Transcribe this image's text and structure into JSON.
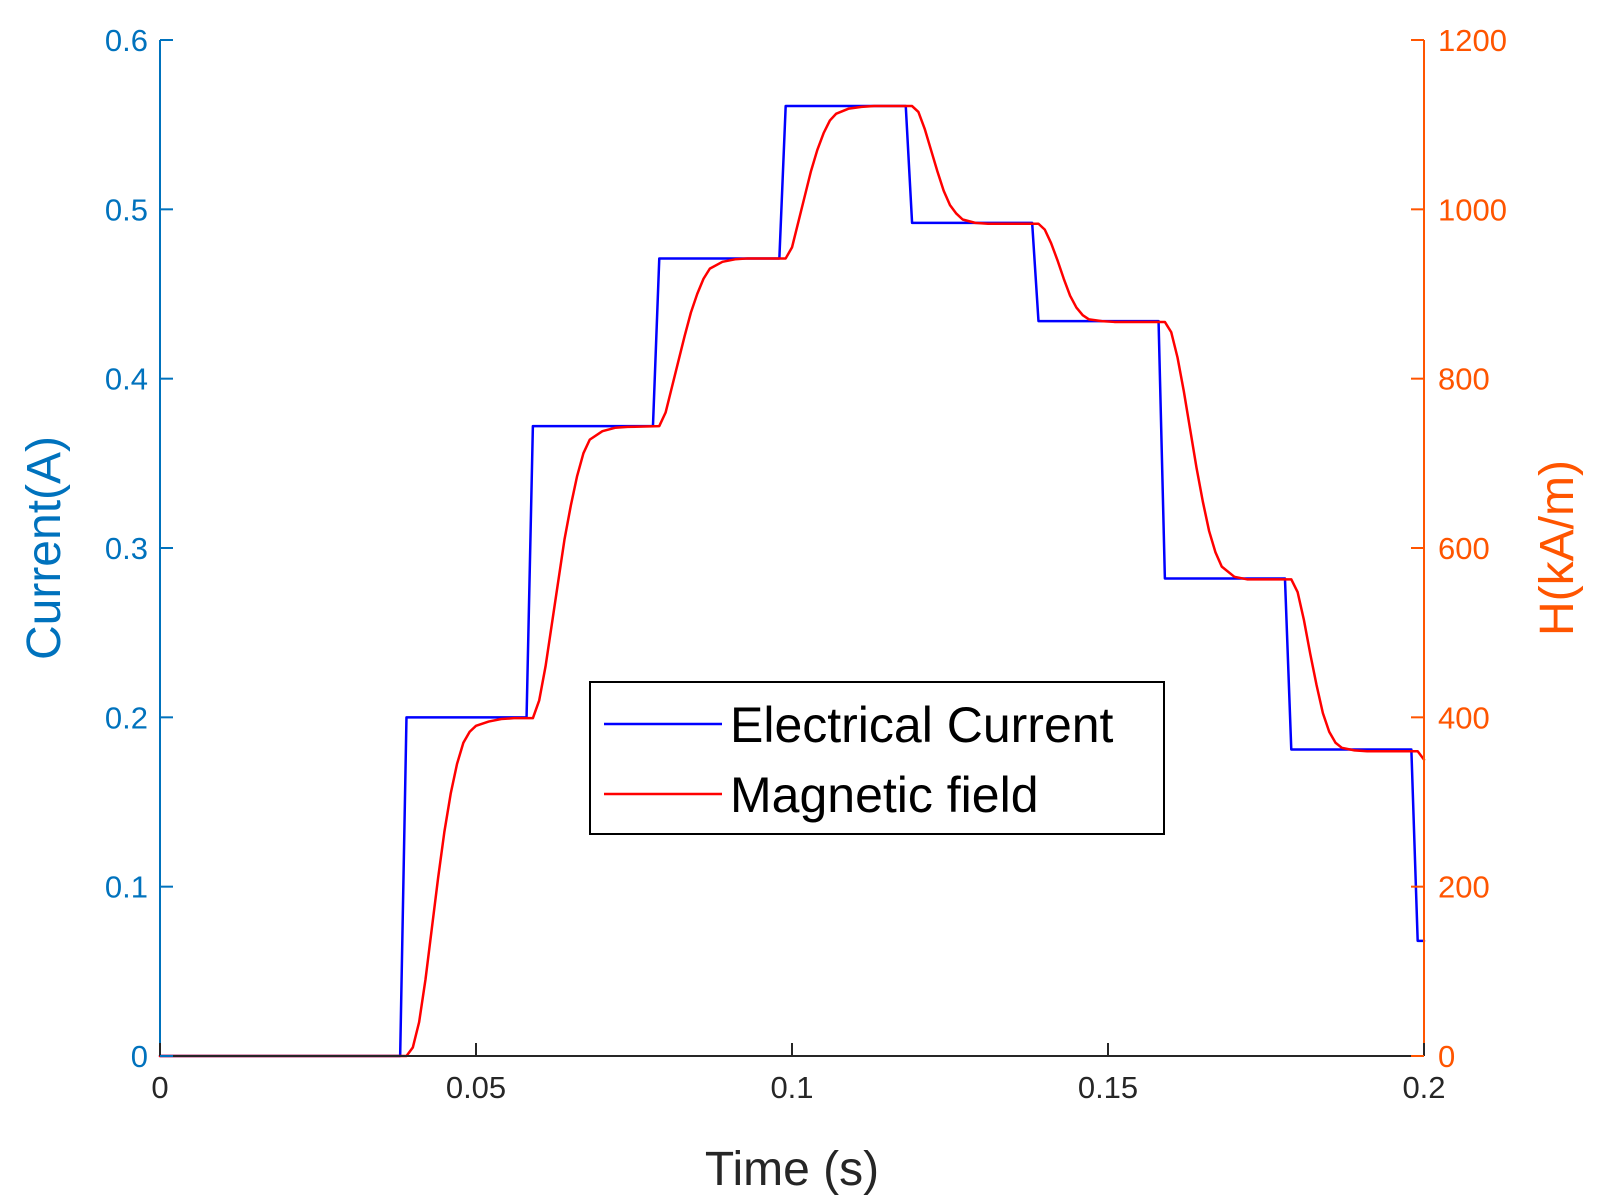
{
  "chart_data": {
    "type": "line",
    "xlabel": "Time (s)",
    "ylabel_left": "Current(A)",
    "ylabel_right": "H(kA/m)",
    "xlim": [
      0,
      0.2
    ],
    "ylim_left": [
      0,
      0.6
    ],
    "ylim_right": [
      0,
      1200
    ],
    "xticks": [
      0,
      0.05,
      0.1,
      0.15,
      0.2
    ],
    "xtick_labels": [
      "0",
      "0.05",
      "0.1",
      "0.15",
      "0.2"
    ],
    "yticks_left": [
      0,
      0.1,
      0.2,
      0.3,
      0.4,
      0.5,
      0.6
    ],
    "ytick_labels_left": [
      "0",
      "0.1",
      "0.2",
      "0.3",
      "0.4",
      "0.5",
      "0.6"
    ],
    "yticks_right": [
      0,
      200,
      400,
      600,
      800,
      1000,
      1200
    ],
    "ytick_labels_right": [
      "0",
      "200",
      "400",
      "600",
      "800",
      "1000",
      "1200"
    ],
    "grid": false,
    "legend_position": "center",
    "colors": {
      "left_axis": "#0072BD",
      "right_axis": "#FF5500",
      "current": "#0000FF",
      "field": "#FF0000",
      "box": "#262626"
    },
    "series": [
      {
        "name": "Electrical Current",
        "axis": "left",
        "color": "#0000FF",
        "points": [
          [
            0,
            0
          ],
          [
            0.038,
            0
          ],
          [
            0.039,
            0.2
          ],
          [
            0.058,
            0.2
          ],
          [
            0.059,
            0.372
          ],
          [
            0.078,
            0.372
          ],
          [
            0.079,
            0.471
          ],
          [
            0.098,
            0.471
          ],
          [
            0.099,
            0.561
          ],
          [
            0.118,
            0.561
          ],
          [
            0.119,
            0.492
          ],
          [
            0.138,
            0.492
          ],
          [
            0.139,
            0.434
          ],
          [
            0.158,
            0.434
          ],
          [
            0.159,
            0.282
          ],
          [
            0.178,
            0.282
          ],
          [
            0.179,
            0.181
          ],
          [
            0.198,
            0.181
          ],
          [
            0.199,
            0.068
          ],
          [
            0.2,
            0.068
          ]
        ]
      },
      {
        "name": "Magnetic field",
        "axis": "right",
        "color": "#FF0000",
        "points": [
          [
            0,
            0
          ],
          [
            0.039,
            0
          ],
          [
            0.04,
            10
          ],
          [
            0.041,
            40
          ],
          [
            0.042,
            90
          ],
          [
            0.043,
            150
          ],
          [
            0.044,
            210
          ],
          [
            0.045,
            265
          ],
          [
            0.046,
            310
          ],
          [
            0.047,
            345
          ],
          [
            0.048,
            370
          ],
          [
            0.049,
            383
          ],
          [
            0.05,
            390
          ],
          [
            0.052,
            395
          ],
          [
            0.054,
            398
          ],
          [
            0.056,
            399
          ],
          [
            0.059,
            399
          ],
          [
            0.06,
            420
          ],
          [
            0.061,
            460
          ],
          [
            0.062,
            510
          ],
          [
            0.063,
            560
          ],
          [
            0.064,
            610
          ],
          [
            0.065,
            650
          ],
          [
            0.066,
            685
          ],
          [
            0.067,
            712
          ],
          [
            0.068,
            728
          ],
          [
            0.07,
            738
          ],
          [
            0.072,
            742
          ],
          [
            0.074,
            743
          ],
          [
            0.079,
            744
          ],
          [
            0.08,
            760
          ],
          [
            0.081,
            790
          ],
          [
            0.082,
            820
          ],
          [
            0.083,
            850
          ],
          [
            0.084,
            878
          ],
          [
            0.085,
            900
          ],
          [
            0.086,
            918
          ],
          [
            0.087,
            930
          ],
          [
            0.089,
            938
          ],
          [
            0.091,
            941
          ],
          [
            0.093,
            942
          ],
          [
            0.099,
            942
          ],
          [
            0.1,
            955
          ],
          [
            0.101,
            985
          ],
          [
            0.102,
            1015
          ],
          [
            0.103,
            1045
          ],
          [
            0.104,
            1070
          ],
          [
            0.105,
            1090
          ],
          [
            0.106,
            1105
          ],
          [
            0.107,
            1113
          ],
          [
            0.109,
            1119
          ],
          [
            0.111,
            1121
          ],
          [
            0.113,
            1122
          ],
          [
            0.119,
            1122
          ],
          [
            0.12,
            1115
          ],
          [
            0.121,
            1095
          ],
          [
            0.122,
            1070
          ],
          [
            0.123,
            1045
          ],
          [
            0.124,
            1022
          ],
          [
            0.125,
            1005
          ],
          [
            0.126,
            995
          ],
          [
            0.127,
            988
          ],
          [
            0.129,
            984
          ],
          [
            0.131,
            983
          ],
          [
            0.139,
            983
          ],
          [
            0.14,
            976
          ],
          [
            0.141,
            960
          ],
          [
            0.142,
            940
          ],
          [
            0.143,
            918
          ],
          [
            0.144,
            898
          ],
          [
            0.145,
            884
          ],
          [
            0.146,
            875
          ],
          [
            0.147,
            870
          ],
          [
            0.149,
            868
          ],
          [
            0.151,
            867
          ],
          [
            0.159,
            867
          ],
          [
            0.16,
            855
          ],
          [
            0.161,
            825
          ],
          [
            0.162,
            785
          ],
          [
            0.163,
            740
          ],
          [
            0.164,
            695
          ],
          [
            0.165,
            655
          ],
          [
            0.166,
            620
          ],
          [
            0.167,
            595
          ],
          [
            0.168,
            578
          ],
          [
            0.17,
            566
          ],
          [
            0.172,
            563
          ],
          [
            0.179,
            563
          ],
          [
            0.18,
            548
          ],
          [
            0.181,
            515
          ],
          [
            0.182,
            475
          ],
          [
            0.183,
            438
          ],
          [
            0.184,
            405
          ],
          [
            0.185,
            383
          ],
          [
            0.186,
            370
          ],
          [
            0.187,
            364
          ],
          [
            0.189,
            361
          ],
          [
            0.191,
            360
          ],
          [
            0.199,
            360
          ],
          [
            0.2,
            350
          ]
        ]
      }
    ]
  }
}
